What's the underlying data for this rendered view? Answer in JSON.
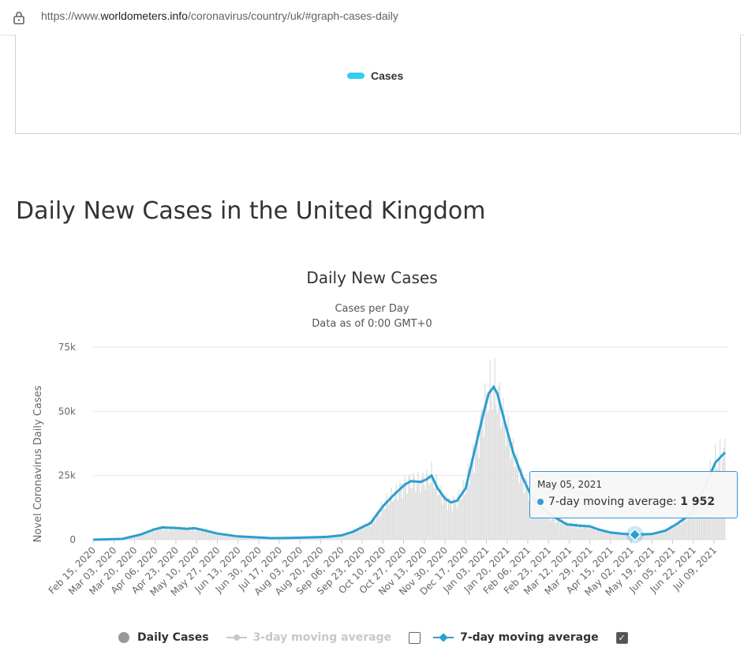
{
  "browser": {
    "url_prefix": "https://www.",
    "url_domain": "worldometers.info",
    "url_path": "/coronavirus/country/uk/#graph-cases-daily"
  },
  "top_chart": {
    "legend_label": "Cases",
    "legend_color": "#33ccf5"
  },
  "section": {
    "heading": "Daily New Cases in the United Kingdom"
  },
  "chart_data": {
    "type": "line",
    "title": "Daily New Cases",
    "subtitle_1": "Cases per Day",
    "subtitle_2": "Data as of 0:00 GMT+0",
    "ylabel": "Novel Coronavirus Daily Cases",
    "ylim": [
      0,
      75000
    ],
    "yticks": [
      "0",
      "25k",
      "50k",
      "75k"
    ],
    "x_range": [
      "2020-02-15",
      "2021-07-20"
    ],
    "xticks": [
      "Feb 15, 2020",
      "Mar 03, 2020",
      "Mar 20, 2020",
      "Apr 06, 2020",
      "Apr 23, 2020",
      "May 10, 2020",
      "May 27, 2020",
      "Jun 13, 2020",
      "Jun 30, 2020",
      "Jul 17, 2020",
      "Aug 03, 2020",
      "Aug 20, 2020",
      "Sep 06, 2020",
      "Sep 23, 2020",
      "Oct 10, 2020",
      "Oct 27, 2020",
      "Nov 13, 2020",
      "Nov 30, 2020",
      "Dec 17, 2020",
      "Jan 03, 2021",
      "Jan 20, 2021",
      "Feb 06, 2021",
      "Feb 23, 2021",
      "Mar 12, 2021",
      "Mar 29, 2021",
      "Apr 15, 2021",
      "May 02, 2021",
      "May 19, 2021",
      "Jun 05, 2021",
      "Jun 22, 2021",
      "Jul 09, 2021"
    ],
    "grid": true,
    "series": [
      {
        "name": "7-day moving average",
        "color": "#2a9fd0",
        "points": [
          [
            "2020-02-15",
            0
          ],
          [
            "2020-03-10",
            300
          ],
          [
            "2020-03-25",
            2000
          ],
          [
            "2020-04-05",
            4000
          ],
          [
            "2020-04-12",
            4800
          ],
          [
            "2020-04-25",
            4500
          ],
          [
            "2020-05-02",
            4200
          ],
          [
            "2020-05-08",
            4500
          ],
          [
            "2020-05-15",
            3800
          ],
          [
            "2020-05-27",
            2400
          ],
          [
            "2020-06-13",
            1300
          ],
          [
            "2020-06-30",
            900
          ],
          [
            "2020-07-10",
            600
          ],
          [
            "2020-07-25",
            700
          ],
          [
            "2020-08-10",
            900
          ],
          [
            "2020-08-25",
            1100
          ],
          [
            "2020-09-06",
            1700
          ],
          [
            "2020-09-15",
            3000
          ],
          [
            "2020-09-30",
            6500
          ],
          [
            "2020-10-10",
            13000
          ],
          [
            "2020-10-18",
            17000
          ],
          [
            "2020-10-28",
            21500
          ],
          [
            "2020-11-02",
            22800
          ],
          [
            "2020-11-10",
            22500
          ],
          [
            "2020-11-15",
            23500
          ],
          [
            "2020-11-19",
            25000
          ],
          [
            "2020-11-24",
            20000
          ],
          [
            "2020-11-30",
            16000
          ],
          [
            "2020-12-05",
            14500
          ],
          [
            "2020-12-10",
            15200
          ],
          [
            "2020-12-17",
            20000
          ],
          [
            "2020-12-24",
            34000
          ],
          [
            "2021-01-01",
            50000
          ],
          [
            "2021-01-05",
            57000
          ],
          [
            "2021-01-09",
            59500
          ],
          [
            "2021-01-12",
            57000
          ],
          [
            "2021-01-18",
            46000
          ],
          [
            "2021-01-25",
            34000
          ],
          [
            "2021-02-02",
            24000
          ],
          [
            "2021-02-10",
            16000
          ],
          [
            "2021-02-20",
            11500
          ],
          [
            "2021-03-01",
            8500
          ],
          [
            "2021-03-10",
            6000
          ],
          [
            "2021-03-20",
            5500
          ],
          [
            "2021-03-29",
            5200
          ],
          [
            "2021-04-05",
            4000
          ],
          [
            "2021-04-15",
            2800
          ],
          [
            "2021-04-25",
            2300
          ],
          [
            "2021-05-05",
            1952
          ],
          [
            "2021-05-19",
            2200
          ],
          [
            "2021-05-30",
            3500
          ],
          [
            "2021-06-08",
            6000
          ],
          [
            "2021-06-20",
            10000
          ],
          [
            "2021-07-01",
            20000
          ],
          [
            "2021-07-10",
            30000
          ],
          [
            "2021-07-18",
            34000
          ]
        ]
      }
    ],
    "hidden_series": [
      {
        "name": "Daily Cases",
        "color": "#999999"
      },
      {
        "name": "3-day moving average",
        "color": "#c8c8c8"
      }
    ],
    "tooltip": {
      "date": "May 05, 2021",
      "label": "7-day moving average:",
      "value": "1 952",
      "x": "2021-05-05",
      "y": 1952
    }
  },
  "legend": {
    "daily_cases": "Daily Cases",
    "three_day": "3-day moving average",
    "seven_day": "7-day moving average",
    "seven_day_checked": "✓"
  }
}
